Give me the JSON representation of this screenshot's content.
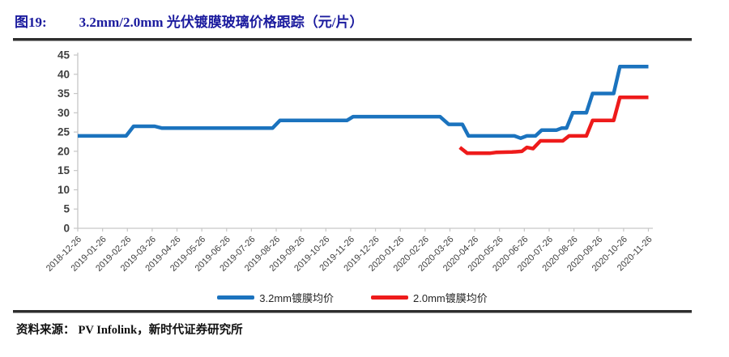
{
  "figure": {
    "label": "图19:",
    "title": "3.2mm/2.0mm  光伏镀膜玻璃价格跟踪（元/片）",
    "source_label": "资料来源：",
    "source_text": "PV Infolink，新时代证券研究所"
  },
  "colors": {
    "title_blue": "#1b1b9e",
    "axis_text": "#404040",
    "axis_line": "#c6c6c6",
    "rule_dark": "#2e2e2e",
    "series_blue": "#1b73be",
    "series_red": "#ee1b1b"
  },
  "chart_data": {
    "type": "line",
    "title": "3.2mm/2.0mm 光伏镀膜玻璃价格跟踪（元/片）",
    "xlabel": "",
    "ylabel": "",
    "ylim": [
      0,
      45
    ],
    "ytick_step": 5,
    "grid": false,
    "legend_position": "bottom",
    "categories": [
      "2018-12-26",
      "2019-01-26",
      "2019-02-26",
      "2019-03-26",
      "2019-04-26",
      "2019-05-26",
      "2019-06-26",
      "2019-07-26",
      "2019-08-26",
      "2019-09-26",
      "2019-10-26",
      "2019-11-26",
      "2019-12-26",
      "2020-01-26",
      "2020-02-26",
      "2020-03-26",
      "2020-04-26",
      "2020-05-26",
      "2020-06-26",
      "2020-07-26",
      "2020-08-26",
      "2020-09-26",
      "2020-10-26",
      "2020-11-26"
    ],
    "x_unit": "month-index (0 = 2018-12-26, 23 = 2020-11-26)",
    "series": [
      {
        "name": "3.2mm镀膜均价",
        "color": "#1b73be",
        "points": [
          [
            0,
            24
          ],
          [
            1.95,
            24
          ],
          [
            2.25,
            26.5
          ],
          [
            3.1,
            26.5
          ],
          [
            3.4,
            26
          ],
          [
            7.85,
            26
          ],
          [
            8.15,
            28
          ],
          [
            10.85,
            28
          ],
          [
            11.1,
            29
          ],
          [
            14.6,
            29
          ],
          [
            14.95,
            27
          ],
          [
            15.5,
            27
          ],
          [
            15.75,
            24
          ],
          [
            17.6,
            24
          ],
          [
            17.85,
            23.4
          ],
          [
            18.1,
            24
          ],
          [
            18.45,
            24
          ],
          [
            18.7,
            25.5
          ],
          [
            19.3,
            25.5
          ],
          [
            19.5,
            26
          ],
          [
            19.7,
            26
          ],
          [
            19.95,
            30
          ],
          [
            20.5,
            30
          ],
          [
            20.75,
            35
          ],
          [
            21.6,
            35
          ],
          [
            21.85,
            42
          ],
          [
            23,
            42
          ]
        ]
      },
      {
        "name": "2.0mm镀膜均价",
        "color": "#ee1b1b",
        "points": [
          [
            15.4,
            21
          ],
          [
            15.7,
            19.5
          ],
          [
            16.6,
            19.5
          ],
          [
            16.85,
            19.7
          ],
          [
            17.5,
            19.8
          ],
          [
            17.9,
            20
          ],
          [
            18.1,
            21
          ],
          [
            18.35,
            20.7
          ],
          [
            18.65,
            22.7
          ],
          [
            19.55,
            22.7
          ],
          [
            19.8,
            24
          ],
          [
            20.5,
            24
          ],
          [
            20.75,
            28
          ],
          [
            21.6,
            28
          ],
          [
            21.85,
            34
          ],
          [
            23,
            34
          ]
        ]
      }
    ]
  }
}
